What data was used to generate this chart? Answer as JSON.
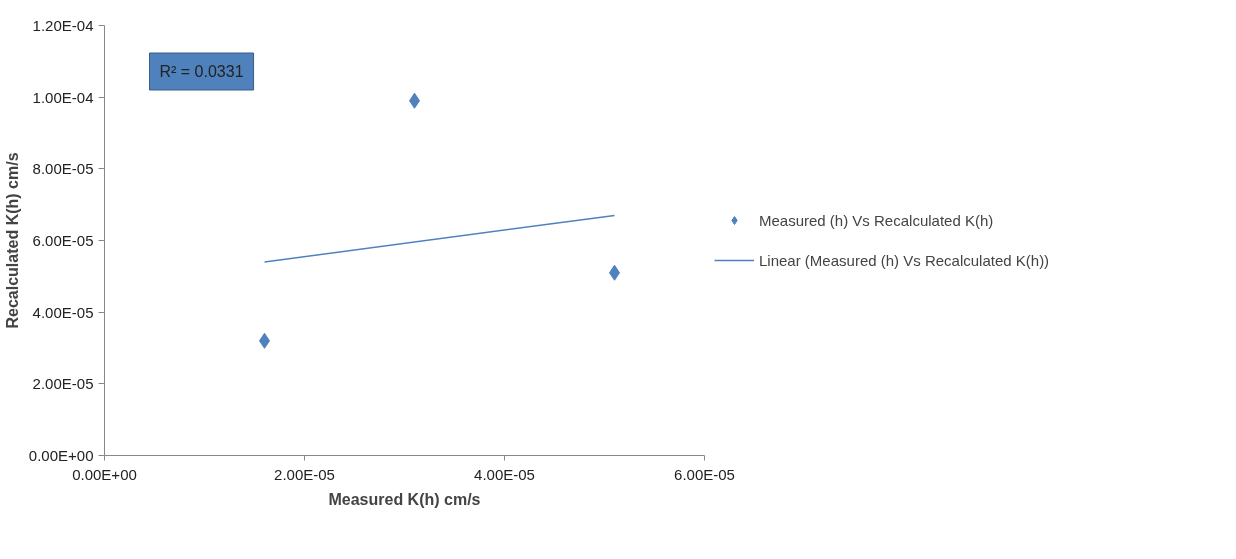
{
  "chart_data": {
    "type": "scatter",
    "xlabel": "Measured K(h) cm/s",
    "ylabel": "Recalculated K(h) cm/s",
    "annotations": [
      "R² = 0.0331"
    ],
    "xlim": [
      0,
      6e-05
    ],
    "ylim": [
      0,
      0.00012
    ],
    "xticks": [
      {
        "value": 0,
        "label": "0.00E+00"
      },
      {
        "value": 2e-05,
        "label": "2.00E-05"
      },
      {
        "value": 4e-05,
        "label": "4.00E-05"
      },
      {
        "value": 6e-05,
        "label": "6.00E-05"
      }
    ],
    "yticks": [
      {
        "value": 0,
        "label": "0.00E+00"
      },
      {
        "value": 2e-05,
        "label": "2.00E-05"
      },
      {
        "value": 4e-05,
        "label": "4.00E-05"
      },
      {
        "value": 6e-05,
        "label": "6.00E-05"
      },
      {
        "value": 8e-05,
        "label": "8.00E-05"
      },
      {
        "value": 0.0001,
        "label": "1.00E-04"
      },
      {
        "value": 0.00012,
        "label": "1.20E-04"
      }
    ],
    "grid": false,
    "legend": "right",
    "series": [
      {
        "name": "Measured (h) Vs Recalculated K(h)",
        "color": "#4f81bd",
        "marker": "diamond",
        "x": [
          1.6e-05,
          3.1e-05,
          5.1e-05
        ],
        "values": [
          3.2e-05,
          9.9e-05,
          5.1e-05
        ]
      },
      {
        "type": "line",
        "name": "Linear (Measured (h) Vs Recalculated K(h))",
        "color": "#4f81bd",
        "marker": "none",
        "x": [
          1.6e-05,
          5.1e-05
        ],
        "values": [
          5.4e-05,
          6.7e-05
        ]
      }
    ]
  }
}
